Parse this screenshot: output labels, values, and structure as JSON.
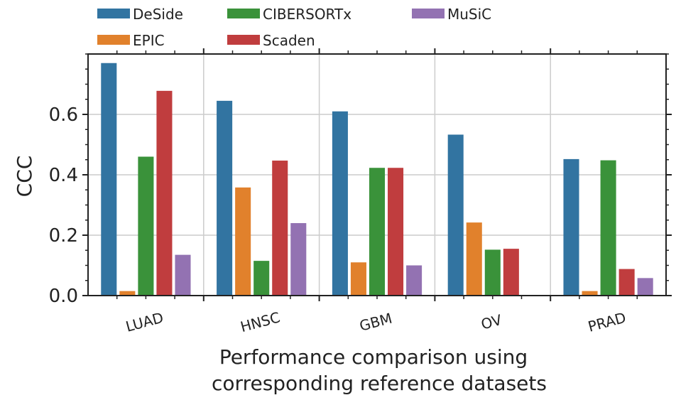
{
  "chart_data": {
    "type": "bar",
    "categories": [
      "LUAD",
      "HNSC",
      "GBM",
      "OV",
      "PRAD"
    ],
    "series": [
      {
        "name": "DeSide",
        "color": "#3274a1",
        "values": [
          0.77,
          0.645,
          0.61,
          0.533,
          0.452
        ]
      },
      {
        "name": "EPIC",
        "color": "#e1812c",
        "values": [
          0.015,
          0.358,
          0.11,
          0.242,
          0.015
        ]
      },
      {
        "name": "CIBERSORTx",
        "color": "#3a923a",
        "values": [
          0.46,
          0.115,
          0.423,
          0.152,
          0.448
        ]
      },
      {
        "name": "Scaden",
        "color": "#c03d3e",
        "values": [
          0.678,
          0.447,
          0.423,
          0.155,
          0.088
        ]
      },
      {
        "name": "MuSiC",
        "color": "#9372b2",
        "values": [
          0.135,
          0.24,
          0.1,
          0.0,
          0.058
        ]
      }
    ],
    "ylabel": "CCC",
    "xlabel_lines": [
      "Performance comparison using",
      "corresponding reference datasets"
    ],
    "ylim": [
      0,
      0.8
    ],
    "yticks": [
      "0.0",
      "0.2",
      "0.4",
      "0.6"
    ],
    "grid": true,
    "legend_position": "top"
  }
}
